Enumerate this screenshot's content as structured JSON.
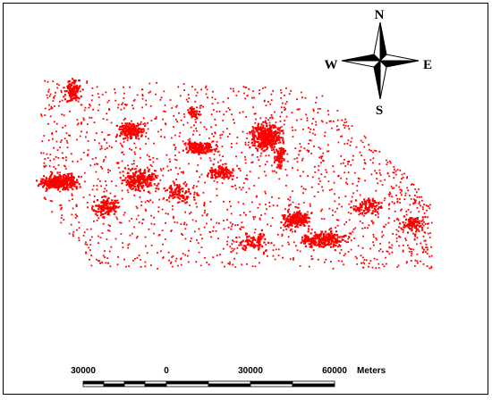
{
  "compass": {
    "north": "N",
    "south": "S",
    "west": "W",
    "east": "E"
  },
  "scale_bar": {
    "labels": [
      "30000",
      "0",
      "30000",
      "60000"
    ],
    "unit": "Meters"
  }
}
